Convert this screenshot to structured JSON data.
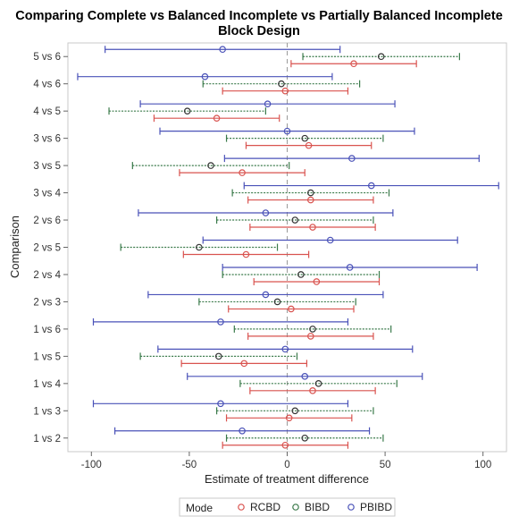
{
  "chart_data": {
    "type": "scatter",
    "title_lines": [
      "Comparing Complete vs Balanced Incomplete vs Partially Balanced Incomplete",
      "Block Design"
    ],
    "xlabel": "Estimate of treatment difference",
    "ylabel": "Comparison",
    "xlim": [
      -112,
      112
    ],
    "x_ticks": [
      -100,
      -50,
      0,
      50,
      100
    ],
    "x_tick_labels": [
      "-100",
      "-50",
      "0",
      "50",
      "100"
    ],
    "reference_line_x": 0,
    "categories": [
      "1 vs 2",
      "1 vs 3",
      "1 vs 4",
      "1 vs 5",
      "1 vs 6",
      "2 vs 3",
      "2 vs 4",
      "2 vs 5",
      "2 vs 6",
      "3 vs 4",
      "3 vs 5",
      "3 vs 6",
      "4 vs 5",
      "4 vs 6",
      "5 vs 6"
    ],
    "legend": {
      "title": "Mode",
      "placement": "bottom-center"
    },
    "series": [
      {
        "name": "RCBD",
        "color": "#d9534f",
        "points": [
          {
            "est": -1,
            "lower": -33,
            "upper": 31
          },
          {
            "est": 1,
            "lower": -31,
            "upper": 33
          },
          {
            "est": 13,
            "lower": -19,
            "upper": 45
          },
          {
            "est": -22,
            "lower": -54,
            "upper": 10
          },
          {
            "est": 12,
            "lower": -20,
            "upper": 44
          },
          {
            "est": 2,
            "lower": -30,
            "upper": 34
          },
          {
            "est": 15,
            "lower": -17,
            "upper": 47
          },
          {
            "est": -21,
            "lower": -53,
            "upper": 11
          },
          {
            "est": 13,
            "lower": -19,
            "upper": 45
          },
          {
            "est": 12,
            "lower": -20,
            "upper": 44
          },
          {
            "est": -23,
            "lower": -55,
            "upper": 9
          },
          {
            "est": 11,
            "lower": -21,
            "upper": 43
          },
          {
            "est": -36,
            "lower": -68,
            "upper": -4
          },
          {
            "est": -1,
            "lower": -33,
            "upper": 31
          },
          {
            "est": 34,
            "lower": 2,
            "upper": 66
          }
        ]
      },
      {
        "name": "BIBD",
        "color": "#3a7a4a",
        "points": [
          {
            "est": 9,
            "lower": -31,
            "upper": 49
          },
          {
            "est": 4,
            "lower": -36,
            "upper": 44
          },
          {
            "est": 16,
            "lower": -24,
            "upper": 56
          },
          {
            "est": -35,
            "lower": -75,
            "upper": 5
          },
          {
            "est": 13,
            "lower": -27,
            "upper": 53
          },
          {
            "est": -5,
            "lower": -45,
            "upper": 35
          },
          {
            "est": 7,
            "lower": -33,
            "upper": 47
          },
          {
            "est": -45,
            "lower": -85,
            "upper": -5
          },
          {
            "est": 4,
            "lower": -36,
            "upper": 44
          },
          {
            "est": 12,
            "lower": -28,
            "upper": 52
          },
          {
            "est": -39,
            "lower": -79,
            "upper": 1
          },
          {
            "est": 9,
            "lower": -31,
            "upper": 49
          },
          {
            "est": -51,
            "lower": -91,
            "upper": -11
          },
          {
            "est": -3,
            "lower": -43,
            "upper": 37
          },
          {
            "est": 48,
            "lower": 8,
            "upper": 88
          }
        ]
      },
      {
        "name": "PBIBD",
        "color": "#4a52b8",
        "points": [
          {
            "est": -23,
            "lower": -88,
            "upper": 42
          },
          {
            "est": -34,
            "lower": -99,
            "upper": 31
          },
          {
            "est": 9,
            "lower": -51,
            "upper": 69
          },
          {
            "est": -1,
            "lower": -66,
            "upper": 64
          },
          {
            "est": -34,
            "lower": -99,
            "upper": 31
          },
          {
            "est": -11,
            "lower": -71,
            "upper": 49
          },
          {
            "est": 32,
            "lower": -33,
            "upper": 97
          },
          {
            "est": 22,
            "lower": -43,
            "upper": 87
          },
          {
            "est": -11,
            "lower": -76,
            "upper": 54
          },
          {
            "est": 43,
            "lower": -22,
            "upper": 108
          },
          {
            "est": 33,
            "lower": -32,
            "upper": 98
          },
          {
            "est": 0,
            "lower": -65,
            "upper": 65
          },
          {
            "est": -10,
            "lower": -75,
            "upper": 55
          },
          {
            "est": -42,
            "lower": -107,
            "upper": 23
          },
          {
            "est": -33,
            "lower": -93,
            "upper": 27
          }
        ]
      }
    ]
  }
}
